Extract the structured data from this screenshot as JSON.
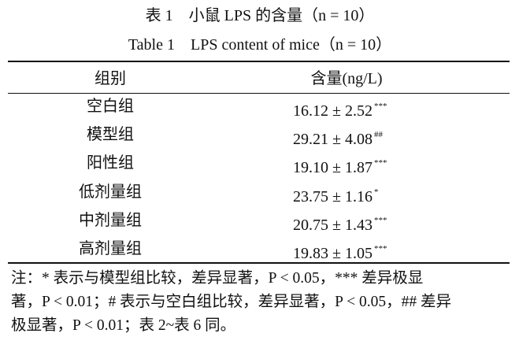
{
  "title_cn": "表 1　小鼠 LPS 的含量（n = 10）",
  "title_en": "Table 1　LPS content of mice（n = 10）",
  "table": {
    "header": [
      "组别",
      "含量(ng/L)"
    ],
    "rows": [
      [
        "空白组",
        "16.12 ± 2.52",
        "***"
      ],
      [
        "模型组",
        "29.21 ± 4.08",
        "##"
      ],
      [
        "阳性组",
        "19.10 ± 1.87",
        "***"
      ],
      [
        "低剂量组",
        "23.75 ± 1.16",
        "*"
      ],
      [
        "中剂量组",
        "20.75 ± 1.43",
        "***"
      ],
      [
        "高剂量组",
        "19.83 ± 1.05",
        "***"
      ]
    ]
  },
  "note": [
    "注：* 表示与模型组比较，差异显著，P < 0.05，*** 差异极显",
    "著，P < 0.01；# 表示与空白组比较，差异显著，P < 0.05，## 差异",
    "极显著，P < 0.01；表 2~表 6 同。"
  ]
}
